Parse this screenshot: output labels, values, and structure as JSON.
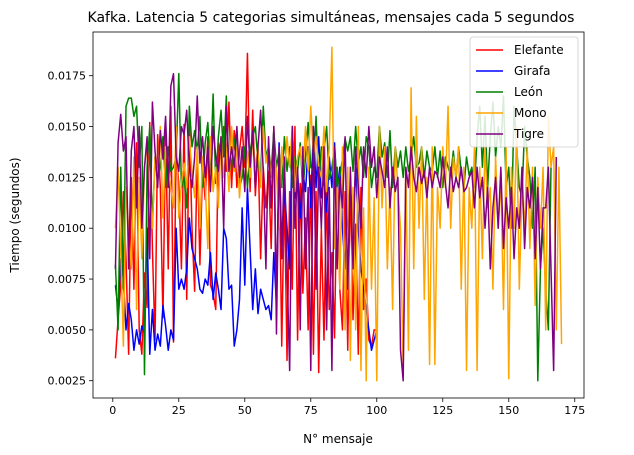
{
  "chart_data": {
    "type": "line",
    "title": "Kafka. Latencia 5 categorias simultáneas, mensajes cada 5 segundos",
    "xlabel": "N° mensaje",
    "ylabel": "Tiempo (segundos)",
    "xlim": [
      -7.5,
      178.5
    ],
    "ylim": [
      0.00165,
      0.01965
    ],
    "xticks": [
      0,
      25,
      50,
      75,
      100,
      125,
      150,
      175
    ],
    "yticks": [
      0.0025,
      0.005,
      0.0075,
      0.01,
      0.0125,
      0.015,
      0.0175
    ],
    "ytick_labels": [
      "0.0025",
      "0.0050",
      "0.0075",
      "0.0100",
      "0.0125",
      "0.0150",
      "0.0175"
    ],
    "grid": false,
    "legend": "top-right",
    "series": [
      {
        "name": "Elefante",
        "color": "#ff0000",
        "x_start": 1,
        "values": [
          0.0036,
          0.0055,
          0.0072,
          0.0118,
          0.0085,
          0.0038,
          0.0125,
          0.007,
          0.0142,
          0.005,
          0.0038,
          0.0078,
          0.0061,
          0.0152,
          0.009,
          0.0045,
          0.0146,
          0.012,
          0.0056,
          0.0148,
          0.008,
          0.016,
          0.0044,
          0.0138,
          0.0122,
          0.008,
          0.0151,
          0.0065,
          0.0152,
          0.01,
          0.0069,
          0.0138,
          0.0082,
          0.013,
          0.0114,
          0.0145,
          0.0072,
          0.0068,
          0.006,
          0.0142,
          0.0135,
          0.015,
          0.0128,
          0.0162,
          0.012,
          0.0148,
          0.012,
          0.0138,
          0.015,
          0.013,
          0.0186,
          0.0118,
          0.0158,
          0.0116,
          0.014,
          0.0085,
          0.013,
          0.011,
          0.0128,
          0.009,
          0.015,
          0.0062,
          0.0135,
          0.0042,
          0.012,
          0.0035,
          0.0118,
          0.007,
          0.015,
          0.0045,
          0.0122,
          0.0068,
          0.0105,
          0.005,
          0.0126,
          0.0038,
          0.0118,
          0.0029,
          0.01,
          0.0045,
          0.0118,
          0.006,
          0.0088,
          0.0046,
          0.013,
          0.007,
          0.005,
          0.0118,
          0.004,
          0.0125,
          0.0055,
          0.0102,
          0.0038,
          0.012,
          0.006,
          0.0075,
          0.0045,
          0.0042,
          0.005,
          0.005
        ]
      },
      {
        "name": "Girafa",
        "color": "#0000ff",
        "x_start": 1,
        "values": [
          0.0072,
          0.006,
          0.0085,
          0.0075,
          0.005,
          0.0063,
          0.0055,
          0.004,
          0.005,
          0.0043,
          0.0052,
          0.0048,
          0.01,
          0.0038,
          0.006,
          0.004,
          0.0048,
          0.0042,
          0.0062,
          0.0052,
          0.004,
          0.005,
          0.0045,
          0.01,
          0.007,
          0.0075,
          0.007,
          0.008,
          0.0105,
          0.009,
          0.0085,
          0.008,
          0.007,
          0.0068,
          0.0075,
          0.0072,
          0.0088,
          0.0065,
          0.0078,
          0.007,
          0.006,
          0.01,
          0.0095,
          0.007,
          0.0072,
          0.0042,
          0.005,
          0.0065,
          0.011,
          0.0072,
          0.012,
          0.009,
          0.006,
          0.008,
          0.0058,
          0.007,
          0.0065,
          0.006,
          0.0062,
          0.0055,
          0.0088,
          0.0062,
          0.0142,
          0.009,
          0.012,
          0.01,
          0.008,
          0.015,
          0.0115,
          0.0128,
          0.0105,
          0.0128,
          0.0118,
          0.014,
          0.011,
          0.015,
          0.012,
          0.0145,
          0.0115,
          0.0125,
          0.0108,
          0.0135,
          0.012,
          0.0142,
          0.0118,
          0.013,
          0.01,
          0.008,
          0.011,
          0.012,
          0.01,
          0.013,
          0.01,
          0.008,
          0.007,
          0.006,
          0.005,
          0.004,
          0.0045,
          0.005
        ]
      },
      {
        "name": "León",
        "color": "#008000",
        "x_start": 1,
        "values": [
          0.0082,
          0.005,
          0.013,
          0.007,
          0.016,
          0.0164,
          0.0164,
          0.0155,
          0.016,
          0.013,
          0.015,
          0.0028,
          0.013,
          0.015,
          0.01,
          0.0135,
          0.0124,
          0.013,
          0.0145,
          0.012,
          0.014,
          0.0128,
          0.013,
          0.0135,
          0.0176,
          0.012,
          0.0125,
          0.011,
          0.016,
          0.014,
          0.0148,
          0.0138,
          0.0155,
          0.012,
          0.0142,
          0.0152,
          0.0128,
          0.0166,
          0.0122,
          0.0145,
          0.0158,
          0.0135,
          0.0165,
          0.0128,
          0.013,
          0.0142,
          0.0148,
          0.012,
          0.0125,
          0.014,
          0.012,
          0.0138,
          0.0145,
          0.015,
          0.0132,
          0.0125,
          0.016,
          0.0135,
          0.014,
          0.0128,
          0.0148,
          0.013,
          0.0138,
          0.012,
          0.0145,
          0.0128,
          0.014,
          0.012,
          0.0135,
          0.0128,
          0.0142,
          0.0118,
          0.0135,
          0.0152,
          0.013,
          0.0128,
          0.0155,
          0.012,
          0.014,
          0.0138,
          0.015,
          0.0124,
          0.013,
          0.014,
          0.012,
          0.0126,
          0.0134,
          0.0144,
          0.0138,
          0.0145,
          0.0128,
          0.015,
          0.0132,
          0.014,
          0.0125,
          0.0145,
          0.014,
          0.012,
          0.013,
          0.0125,
          0.015,
          0.0135,
          0.0142,
          0.0125,
          0.0148,
          0.012,
          0.014,
          0.013,
          0.0138,
          0.0125,
          0.014,
          0.0128,
          0.0135,
          0.0145,
          0.013,
          0.0132,
          0.014,
          0.0125,
          0.0138,
          0.013,
          0.0128,
          0.014,
          0.0125,
          0.0138,
          0.012,
          0.0135,
          0.013,
          0.0126,
          0.0138,
          0.0124,
          0.014,
          0.0128,
          0.012,
          0.0135,
          0.0126,
          0.013,
          0.012,
          0.0145,
          0.016,
          0.013,
          0.0155,
          0.012,
          0.0145,
          0.0162,
          0.0135,
          0.015,
          0.014,
          0.0165,
          0.012,
          0.013,
          0.01,
          0.016,
          0.014,
          0.012,
          0.0115,
          0.015,
          0.0135,
          0.0125,
          0.01,
          0.013,
          0.0025,
          0.008,
          0.01,
          0.007,
          0.005,
          0.013
        ]
      },
      {
        "name": "Mono",
        "color": "#ffa500",
        "x_start": 1,
        "values": [
          0.01,
          0.013,
          0.009,
          0.0042,
          0.012,
          0.01,
          0.008,
          0.0135,
          0.006,
          0.0125,
          0.0085,
          0.013,
          0.014,
          0.012,
          0.01,
          0.0135,
          0.0125,
          0.015,
          0.0105,
          0.014,
          0.013,
          0.012,
          0.011,
          0.015,
          0.0105,
          0.0122,
          0.0132,
          0.012,
          0.0145,
          0.0128,
          0.0115,
          0.014,
          0.01,
          0.0135,
          0.0122,
          0.009,
          0.0145,
          0.0118,
          0.013,
          0.011,
          0.0145,
          0.0125,
          0.014,
          0.0118,
          0.015,
          0.0128,
          0.014,
          0.0115,
          0.0135,
          0.012,
          0.0138,
          0.0125,
          0.0145,
          0.013,
          0.014,
          0.012,
          0.015,
          0.0132,
          0.014,
          0.0125,
          0.0138,
          0.0128,
          0.01,
          0.014,
          0.0125,
          0.0145,
          0.013,
          0.015,
          0.0118,
          0.0135,
          0.014,
          0.0125,
          0.015,
          0.0128,
          0.016,
          0.0135,
          0.0145,
          0.013,
          0.0125,
          0.015,
          0.0118,
          0.014,
          0.0189,
          0.009,
          0.012,
          0.007,
          0.014,
          0.005,
          0.013,
          0.0035,
          0.012,
          0.005,
          0.015,
          0.003,
          0.011,
          0.0025,
          0.013,
          0.007,
          0.0115,
          0.0025,
          0.015,
          0.011,
          0.014,
          0.008,
          0.012,
          0.006,
          0.014,
          0.012,
          0.01,
          0.003,
          0.013,
          0.004,
          0.0169,
          0.008,
          0.0155,
          0.01,
          0.014,
          0.0065,
          0.0125,
          0.0033,
          0.014,
          0.0033,
          0.012,
          0.01,
          0.014,
          0.012,
          0.016,
          0.01,
          0.0135,
          0.0125,
          0.014,
          0.007,
          0.013,
          0.003,
          0.012,
          0.01,
          0.014,
          0.003,
          0.013,
          0.0085,
          0.014,
          0.011,
          0.012,
          0.007,
          0.0135,
          0.01,
          0.0125,
          0.006,
          0.014,
          0.0026,
          0.013,
          0.01,
          0.015,
          0.007,
          0.012,
          0.01,
          0.014,
          0.009,
          0.013,
          0.0062,
          0.0125,
          0.01,
          0.013,
          0.005,
          0.0155,
          0.013,
          0.014,
          0.005,
          0.013,
          0.0043
        ]
      },
      {
        "name": "Tigre",
        "color": "#800080",
        "x_start": 1,
        "values": [
          0.008,
          0.0142,
          0.0156,
          0.0138,
          0.0145,
          0.008,
          0.0138,
          0.015,
          0.011,
          0.015,
          0.01,
          0.013,
          0.0145,
          0.0085,
          0.0162,
          0.0138,
          0.012,
          0.0148,
          0.0134,
          0.0155,
          0.012,
          0.017,
          0.0176,
          0.0135,
          0.0128,
          0.015,
          0.0146,
          0.0158,
          0.013,
          0.012,
          0.0135,
          0.0165,
          0.0132,
          0.0145,
          0.0125,
          0.014,
          0.0118,
          0.015,
          0.0135,
          0.0128,
          0.0145,
          0.01,
          0.016,
          0.0128,
          0.014,
          0.013,
          0.015,
          0.0125,
          0.014,
          0.0118,
          0.0155,
          0.013,
          0.0148,
          0.012,
          0.014,
          0.0158,
          0.0128,
          0.008,
          0.0145,
          0.011,
          0.015,
          0.0048,
          0.014,
          0.0085,
          0.0135,
          0.008,
          0.003,
          0.015,
          0.01,
          0.013,
          0.005,
          0.014,
          0.008,
          0.012,
          0.003,
          0.015,
          0.007,
          0.013,
          0.01,
          0.014,
          0.005,
          0.012,
          0.003,
          0.014,
          0.008,
          0.0125,
          0.011,
          0.0145,
          0.007,
          0.013,
          0.008,
          0.014,
          0.012,
          0.01,
          0.014,
          0.0125,
          0.015,
          0.013,
          0.014,
          0.0115,
          0.0135,
          0.0128,
          0.012,
          0.014,
          0.011,
          0.013,
          0.0118,
          0.0125,
          0.004,
          0.0025,
          0.013,
          0.012,
          0.014,
          0.0125,
          0.0118,
          0.013,
          0.0122,
          0.0128,
          0.0115,
          0.013,
          0.012,
          0.0128,
          0.0126,
          0.012,
          0.0135,
          0.0122,
          0.011,
          0.013,
          0.0118,
          0.0125,
          0.012,
          0.013,
          0.0118,
          0.012,
          0.0125,
          0.0128,
          0.011,
          0.013,
          0.0115,
          0.0125,
          0.01,
          0.012,
          0.008,
          0.011,
          0.0125,
          0.01,
          0.013,
          0.009,
          0.0115,
          0.01,
          0.012,
          0.0085,
          0.011,
          0.01,
          0.013,
          0.009,
          0.012,
          0.011,
          0.0125,
          0.0085,
          0.012,
          0.008,
          0.011,
          0.011,
          0.013,
          0.008,
          0.003,
          0.0135
        ]
      }
    ]
  }
}
